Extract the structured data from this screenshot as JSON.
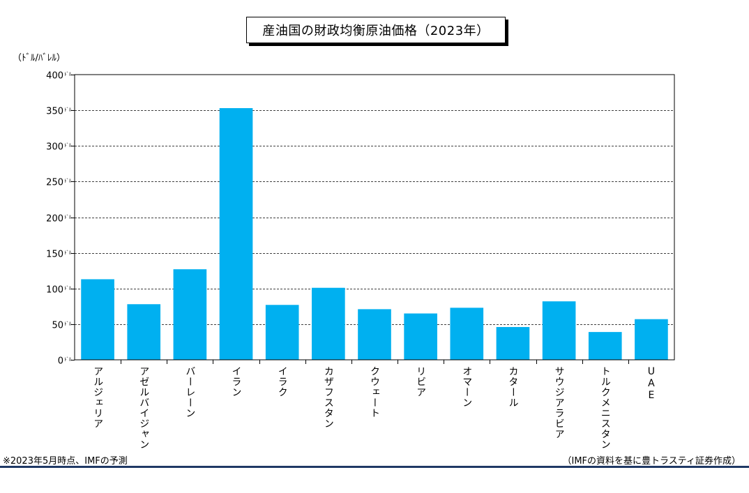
{
  "chart_data": {
    "type": "bar",
    "title": "産油国の財政均衡原油価格（2023年）",
    "ylabel": "（ﾄﾞﾙ/ﾊﾞﾚﾙ）",
    "ylim": [
      0,
      400
    ],
    "yticks": [
      0,
      50,
      100,
      150,
      200,
      250,
      300,
      350,
      400
    ],
    "ytick_suffix": "ﾄﾞﾙ",
    "grid": true,
    "bar_color": "#00b0f0",
    "categories": [
      "アルジェリア",
      "アゼルバイジャン",
      "バーレーン",
      "イラン",
      "イラク",
      "カザフスタン",
      "クウェート",
      "リビア",
      "オマーン",
      "カタール",
      "サウジアラビア",
      "トルクメニスタン",
      "UAE"
    ],
    "values": [
      113,
      78,
      127,
      353,
      77,
      101,
      71,
      65,
      73,
      46,
      82,
      39,
      57
    ]
  },
  "footnote": "※2023年5月時点、IMFの予測",
  "source": "（IMFの資料を基に豊トラスティ証券作成）"
}
